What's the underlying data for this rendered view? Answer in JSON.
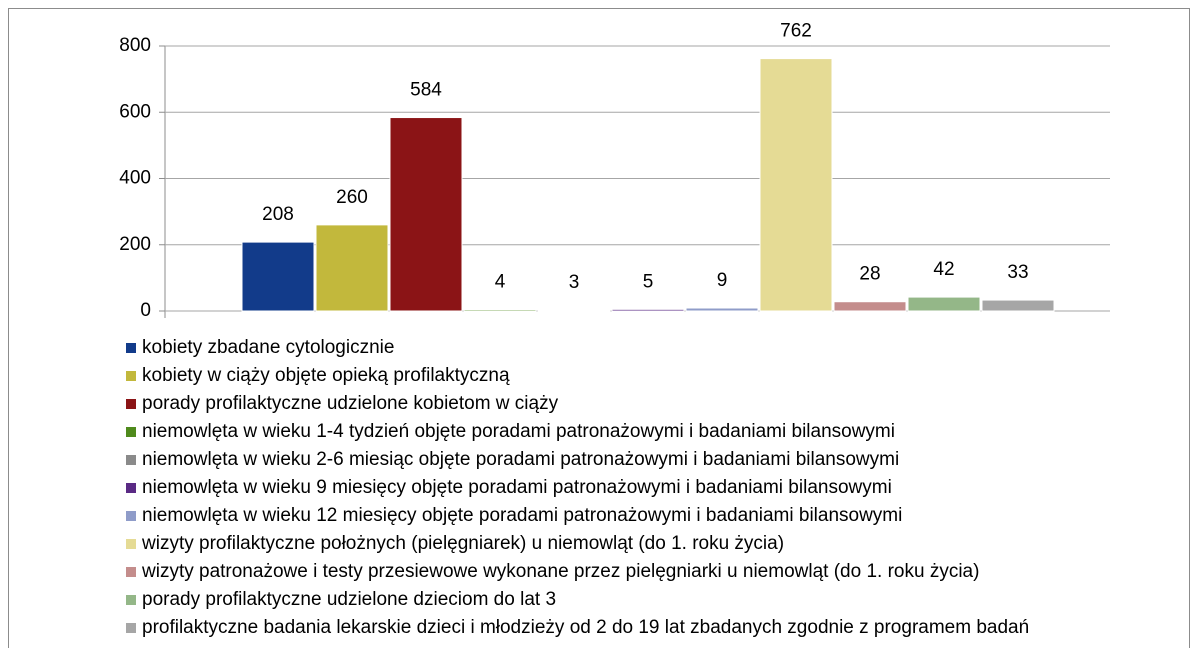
{
  "chart_data": {
    "type": "bar",
    "ylim": [
      0,
      800
    ],
    "yticks": [
      0,
      200,
      400,
      600,
      800
    ],
    "grid": true,
    "series": [
      {
        "name": "kobiety zbadane cytologicznie",
        "color": "#123b8a",
        "values": [
          208
        ]
      },
      {
        "name": "kobiety w ciąży objęte opieką profilaktyczną",
        "color": "#c2b83c",
        "values": [
          260
        ]
      },
      {
        "name": "porady profilaktyczne udzielone kobietom w ciąży",
        "color": "#8b1416",
        "values": [
          584
        ]
      },
      {
        "name": "niemowlęta w wieku 1-4 tydzień objęte poradami patronażowymi i badaniami bilansowymi",
        "color": "#4f8a1c",
        "values": [
          4
        ]
      },
      {
        "name": "niemowlęta w wieku 2-6 miesiąc objęte poradami patronażowymi i badaniami bilansowymi",
        "color": "#8a8a8a",
        "values": [
          3
        ]
      },
      {
        "name": "niemowlęta w wieku 9 miesięcy objęte poradami patronażowymi i badaniami bilansowymi",
        "color": "#5a2a84",
        "values": [
          5
        ]
      },
      {
        "name": "niemowlęta w wieku 12 miesięcy objęte poradami patronażowymi i badaniami bilansowymi",
        "color": "#8f9cc9",
        "values": [
          9
        ]
      },
      {
        "name": "wizyty profilaktyczne położnych (pielęgniarek) u niemowląt (do 1. roku życia)",
        "color": "#e5db95",
        "values": [
          762
        ]
      },
      {
        "name": "wizyty patronażowe i testy przesiewowe wykonane przez pielęgniarki u niemowląt (do 1. roku życia)",
        "color": "#c48d8c",
        "values": [
          28
        ]
      },
      {
        "name": "porady profilaktyczne udzielone dzieciom do lat 3",
        "color": "#94b788",
        "values": [
          42
        ]
      },
      {
        "name": "profilaktyczne badania lekarskie dzieci i młodzieży od 2 do 19 lat zbadanych zgodnie z programem badań",
        "color": "#a6a6a6",
        "values": [
          33
        ]
      }
    ]
  }
}
